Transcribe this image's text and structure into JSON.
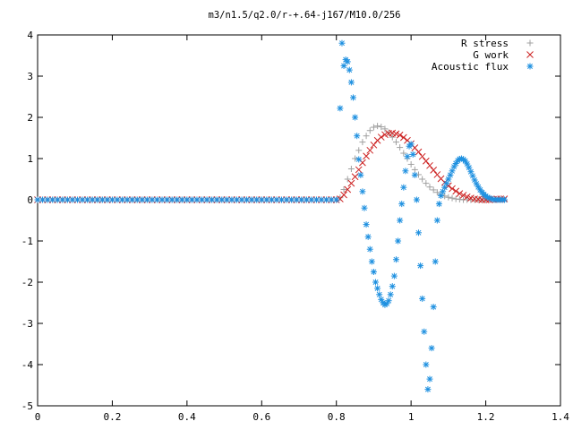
{
  "chart_data": {
    "type": "scatter",
    "title": "m3/n1.5/q2.0/r-+.64-j167/M10.0/256",
    "xlabel": "",
    "ylabel": "",
    "xlim": [
      0,
      1.4
    ],
    "ylim": [
      -5,
      4
    ],
    "xticks": [
      "0",
      "0.2",
      "0.4",
      "0.6",
      "0.8",
      "1",
      "1.2",
      "1.4"
    ],
    "yticks": [
      "4",
      "3",
      "2",
      "1",
      "0",
      "-1",
      "-2",
      "-3",
      "-4",
      "-5"
    ],
    "grid": false,
    "legend_position": "top-right",
    "series": [
      {
        "name": "R stress",
        "marker": "plus",
        "color": "#a0a0a0",
        "points": [
          [
            0.81,
            0.05
          ],
          [
            0.82,
            0.25
          ],
          [
            0.83,
            0.5
          ],
          [
            0.84,
            0.75
          ],
          [
            0.85,
            1.0
          ],
          [
            0.86,
            1.2
          ],
          [
            0.87,
            1.4
          ],
          [
            0.88,
            1.55
          ],
          [
            0.89,
            1.68
          ],
          [
            0.9,
            1.76
          ],
          [
            0.91,
            1.79
          ],
          [
            0.92,
            1.77
          ],
          [
            0.93,
            1.72
          ],
          [
            0.94,
            1.63
          ],
          [
            0.95,
            1.52
          ],
          [
            0.96,
            1.4
          ],
          [
            0.97,
            1.27
          ],
          [
            0.98,
            1.13
          ],
          [
            0.99,
            1.0
          ],
          [
            1.0,
            0.86
          ],
          [
            1.01,
            0.73
          ],
          [
            1.02,
            0.61
          ],
          [
            1.03,
            0.5
          ],
          [
            1.04,
            0.4
          ],
          [
            1.05,
            0.31
          ],
          [
            1.06,
            0.24
          ],
          [
            1.07,
            0.18
          ],
          [
            1.08,
            0.13
          ],
          [
            1.09,
            0.09
          ],
          [
            1.1,
            0.06
          ],
          [
            1.11,
            0.04
          ],
          [
            1.12,
            0.02
          ],
          [
            1.13,
            0.01
          ],
          [
            1.14,
            0.0
          ],
          [
            1.15,
            0.0
          ],
          [
            1.16,
            0.0
          ],
          [
            1.17,
            0.0
          ],
          [
            1.18,
            0.0
          ],
          [
            1.19,
            0.0
          ],
          [
            1.2,
            0.0
          ],
          [
            1.21,
            0.0
          ],
          [
            1.22,
            0.0
          ],
          [
            1.23,
            0.0
          ],
          [
            1.24,
            0.0
          ],
          [
            1.25,
            0.0
          ]
        ]
      },
      {
        "name": "G work",
        "marker": "cross",
        "color": "#cc2020",
        "points": [
          [
            0.81,
            0.02
          ],
          [
            0.82,
            0.12
          ],
          [
            0.83,
            0.25
          ],
          [
            0.84,
            0.4
          ],
          [
            0.85,
            0.56
          ],
          [
            0.86,
            0.73
          ],
          [
            0.87,
            0.9
          ],
          [
            0.88,
            1.06
          ],
          [
            0.89,
            1.2
          ],
          [
            0.9,
            1.33
          ],
          [
            0.91,
            1.44
          ],
          [
            0.92,
            1.52
          ],
          [
            0.93,
            1.58
          ],
          [
            0.94,
            1.61
          ],
          [
            0.95,
            1.62
          ],
          [
            0.96,
            1.6
          ],
          [
            0.97,
            1.57
          ],
          [
            0.98,
            1.51
          ],
          [
            0.99,
            1.44
          ],
          [
            1.0,
            1.36
          ],
          [
            1.01,
            1.26
          ],
          [
            1.02,
            1.16
          ],
          [
            1.03,
            1.05
          ],
          [
            1.04,
            0.94
          ],
          [
            1.05,
            0.83
          ],
          [
            1.06,
            0.72
          ],
          [
            1.07,
            0.61
          ],
          [
            1.08,
            0.51
          ],
          [
            1.09,
            0.42
          ],
          [
            1.1,
            0.34
          ],
          [
            1.11,
            0.27
          ],
          [
            1.12,
            0.21
          ],
          [
            1.13,
            0.15
          ],
          [
            1.14,
            0.11
          ],
          [
            1.15,
            0.07
          ],
          [
            1.16,
            0.04
          ],
          [
            1.17,
            0.02
          ],
          [
            1.18,
            0.01
          ],
          [
            1.19,
            0.0
          ],
          [
            1.2,
            0.0
          ],
          [
            1.21,
            0.0
          ],
          [
            1.22,
            0.01
          ],
          [
            1.23,
            0.02
          ],
          [
            1.24,
            0.02
          ],
          [
            1.25,
            0.02
          ]
        ]
      },
      {
        "name": "Acoustic flux",
        "marker": "star",
        "color": "#1e90e0",
        "points": [
          [
            0.81,
            2.22
          ],
          [
            0.815,
            3.8
          ],
          [
            0.82,
            3.25
          ],
          [
            0.825,
            3.4
          ],
          [
            0.83,
            3.35
          ],
          [
            0.835,
            3.15
          ],
          [
            0.84,
            2.85
          ],
          [
            0.845,
            2.48
          ],
          [
            0.85,
            2.0
          ],
          [
            0.855,
            1.55
          ],
          [
            0.86,
            0.98
          ],
          [
            0.865,
            0.6
          ],
          [
            0.87,
            0.2
          ],
          [
            0.875,
            -0.2
          ],
          [
            0.88,
            -0.6
          ],
          [
            0.885,
            -0.9
          ],
          [
            0.89,
            -1.2
          ],
          [
            0.895,
            -1.5
          ],
          [
            0.9,
            -1.75
          ],
          [
            0.905,
            -2.0
          ],
          [
            0.91,
            -2.15
          ],
          [
            0.915,
            -2.3
          ],
          [
            0.92,
            -2.42
          ],
          [
            0.925,
            -2.5
          ],
          [
            0.93,
            -2.55
          ],
          [
            0.935,
            -2.52
          ],
          [
            0.94,
            -2.45
          ],
          [
            0.945,
            -2.3
          ],
          [
            0.95,
            -2.1
          ],
          [
            0.955,
            -1.85
          ],
          [
            0.96,
            -1.45
          ],
          [
            0.965,
            -1.0
          ],
          [
            0.97,
            -0.5
          ],
          [
            0.975,
            -0.1
          ],
          [
            0.98,
            0.3
          ],
          [
            0.985,
            0.7
          ],
          [
            0.99,
            1.05
          ],
          [
            0.995,
            1.3
          ],
          [
            1.0,
            1.35
          ],
          [
            1.005,
            1.1
          ],
          [
            1.01,
            0.6
          ],
          [
            1.015,
            0.0
          ],
          [
            1.02,
            -0.8
          ],
          [
            1.025,
            -1.6
          ],
          [
            1.03,
            -2.4
          ],
          [
            1.035,
            -3.2
          ],
          [
            1.04,
            -4.0
          ],
          [
            1.045,
            -4.6
          ],
          [
            1.05,
            -4.35
          ],
          [
            1.055,
            -3.6
          ],
          [
            1.06,
            -2.6
          ],
          [
            1.065,
            -1.5
          ],
          [
            1.07,
            -0.5
          ],
          [
            1.075,
            -0.1
          ],
          [
            1.08,
            0.1
          ],
          [
            1.085,
            0.2
          ],
          [
            1.09,
            0.3
          ],
          [
            1.095,
            0.4
          ],
          [
            1.1,
            0.5
          ],
          [
            1.105,
            0.6
          ],
          [
            1.11,
            0.7
          ],
          [
            1.115,
            0.8
          ],
          [
            1.12,
            0.88
          ],
          [
            1.125,
            0.95
          ],
          [
            1.13,
            0.99
          ],
          [
            1.135,
            1.0
          ],
          [
            1.14,
            0.98
          ],
          [
            1.145,
            0.94
          ],
          [
            1.15,
            0.87
          ],
          [
            1.155,
            0.78
          ],
          [
            1.16,
            0.68
          ],
          [
            1.165,
            0.58
          ],
          [
            1.17,
            0.48
          ],
          [
            1.175,
            0.39
          ],
          [
            1.18,
            0.31
          ],
          [
            1.185,
            0.24
          ],
          [
            1.19,
            0.18
          ],
          [
            1.195,
            0.13
          ],
          [
            1.2,
            0.09
          ],
          [
            1.205,
            0.06
          ],
          [
            1.21,
            0.04
          ],
          [
            1.215,
            0.02
          ],
          [
            1.22,
            0.01
          ],
          [
            1.225,
            0.0
          ],
          [
            1.23,
            0.0
          ],
          [
            1.235,
            0.0
          ],
          [
            1.24,
            0.0
          ],
          [
            1.245,
            0.0
          ],
          [
            1.25,
            0.0
          ]
        ]
      }
    ],
    "baseline": {
      "x_start": 0,
      "x_end": 0.8,
      "y": 0,
      "description_series": [
        "R stress",
        "G work",
        "Acoustic flux"
      ]
    }
  }
}
